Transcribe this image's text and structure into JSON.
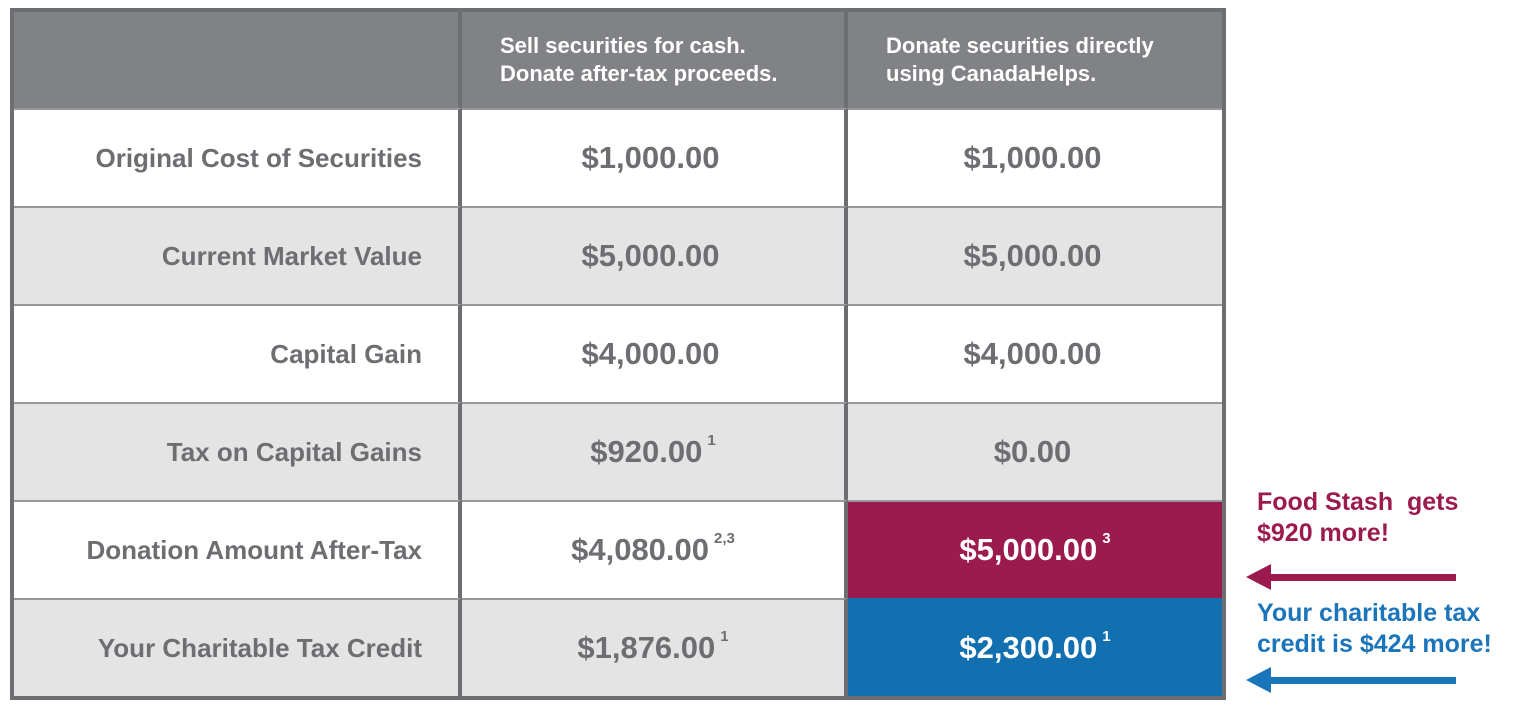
{
  "table": {
    "header": {
      "corner": "",
      "sell": "Sell securities for cash.\nDonate after-tax proceeds.",
      "donate": "Donate securities directly\nusing CanadaHelps."
    },
    "rows": [
      {
        "label": "Original Cost of Securities",
        "sell": "$1,000.00",
        "sell_sup": "",
        "donate": "$1,000.00",
        "donate_sup": ""
      },
      {
        "label": "Current Market Value",
        "sell": "$5,000.00",
        "sell_sup": "",
        "donate": "$5,000.00",
        "donate_sup": ""
      },
      {
        "label": "Capital Gain",
        "sell": "$4,000.00",
        "sell_sup": "",
        "donate": "$4,000.00",
        "donate_sup": ""
      },
      {
        "label": "Tax on Capital Gains",
        "sell": "$920.00",
        "sell_sup": "1",
        "donate": "$0.00",
        "donate_sup": ""
      },
      {
        "label": "Donation Amount After-Tax",
        "sell": "$4,080.00",
        "sell_sup": "2,3",
        "donate": "$5,000.00",
        "donate_sup": "3"
      },
      {
        "label": "Your Charitable Tax Credit",
        "sell": "$1,876.00",
        "sell_sup": "1",
        "donate": "$2,300.00",
        "donate_sup": "1"
      }
    ]
  },
  "annotations": {
    "charity_gain": {
      "text": "Food Stash  gets\n$920 more!"
    },
    "credit_gain": {
      "text": "Your charitable tax\ncredit is $424 more!"
    }
  },
  "colors": {
    "header_gray": "#808285",
    "border_gray": "#6d6e71",
    "row_alt_gray": "#e4e4e5",
    "highlight_maroon": "#9c1b4e",
    "highlight_blue": "#1270b0",
    "annotation_maroon": "#9c1b4e",
    "annotation_blue": "#1b75bb",
    "table_text_gray": "#6d6e71"
  }
}
